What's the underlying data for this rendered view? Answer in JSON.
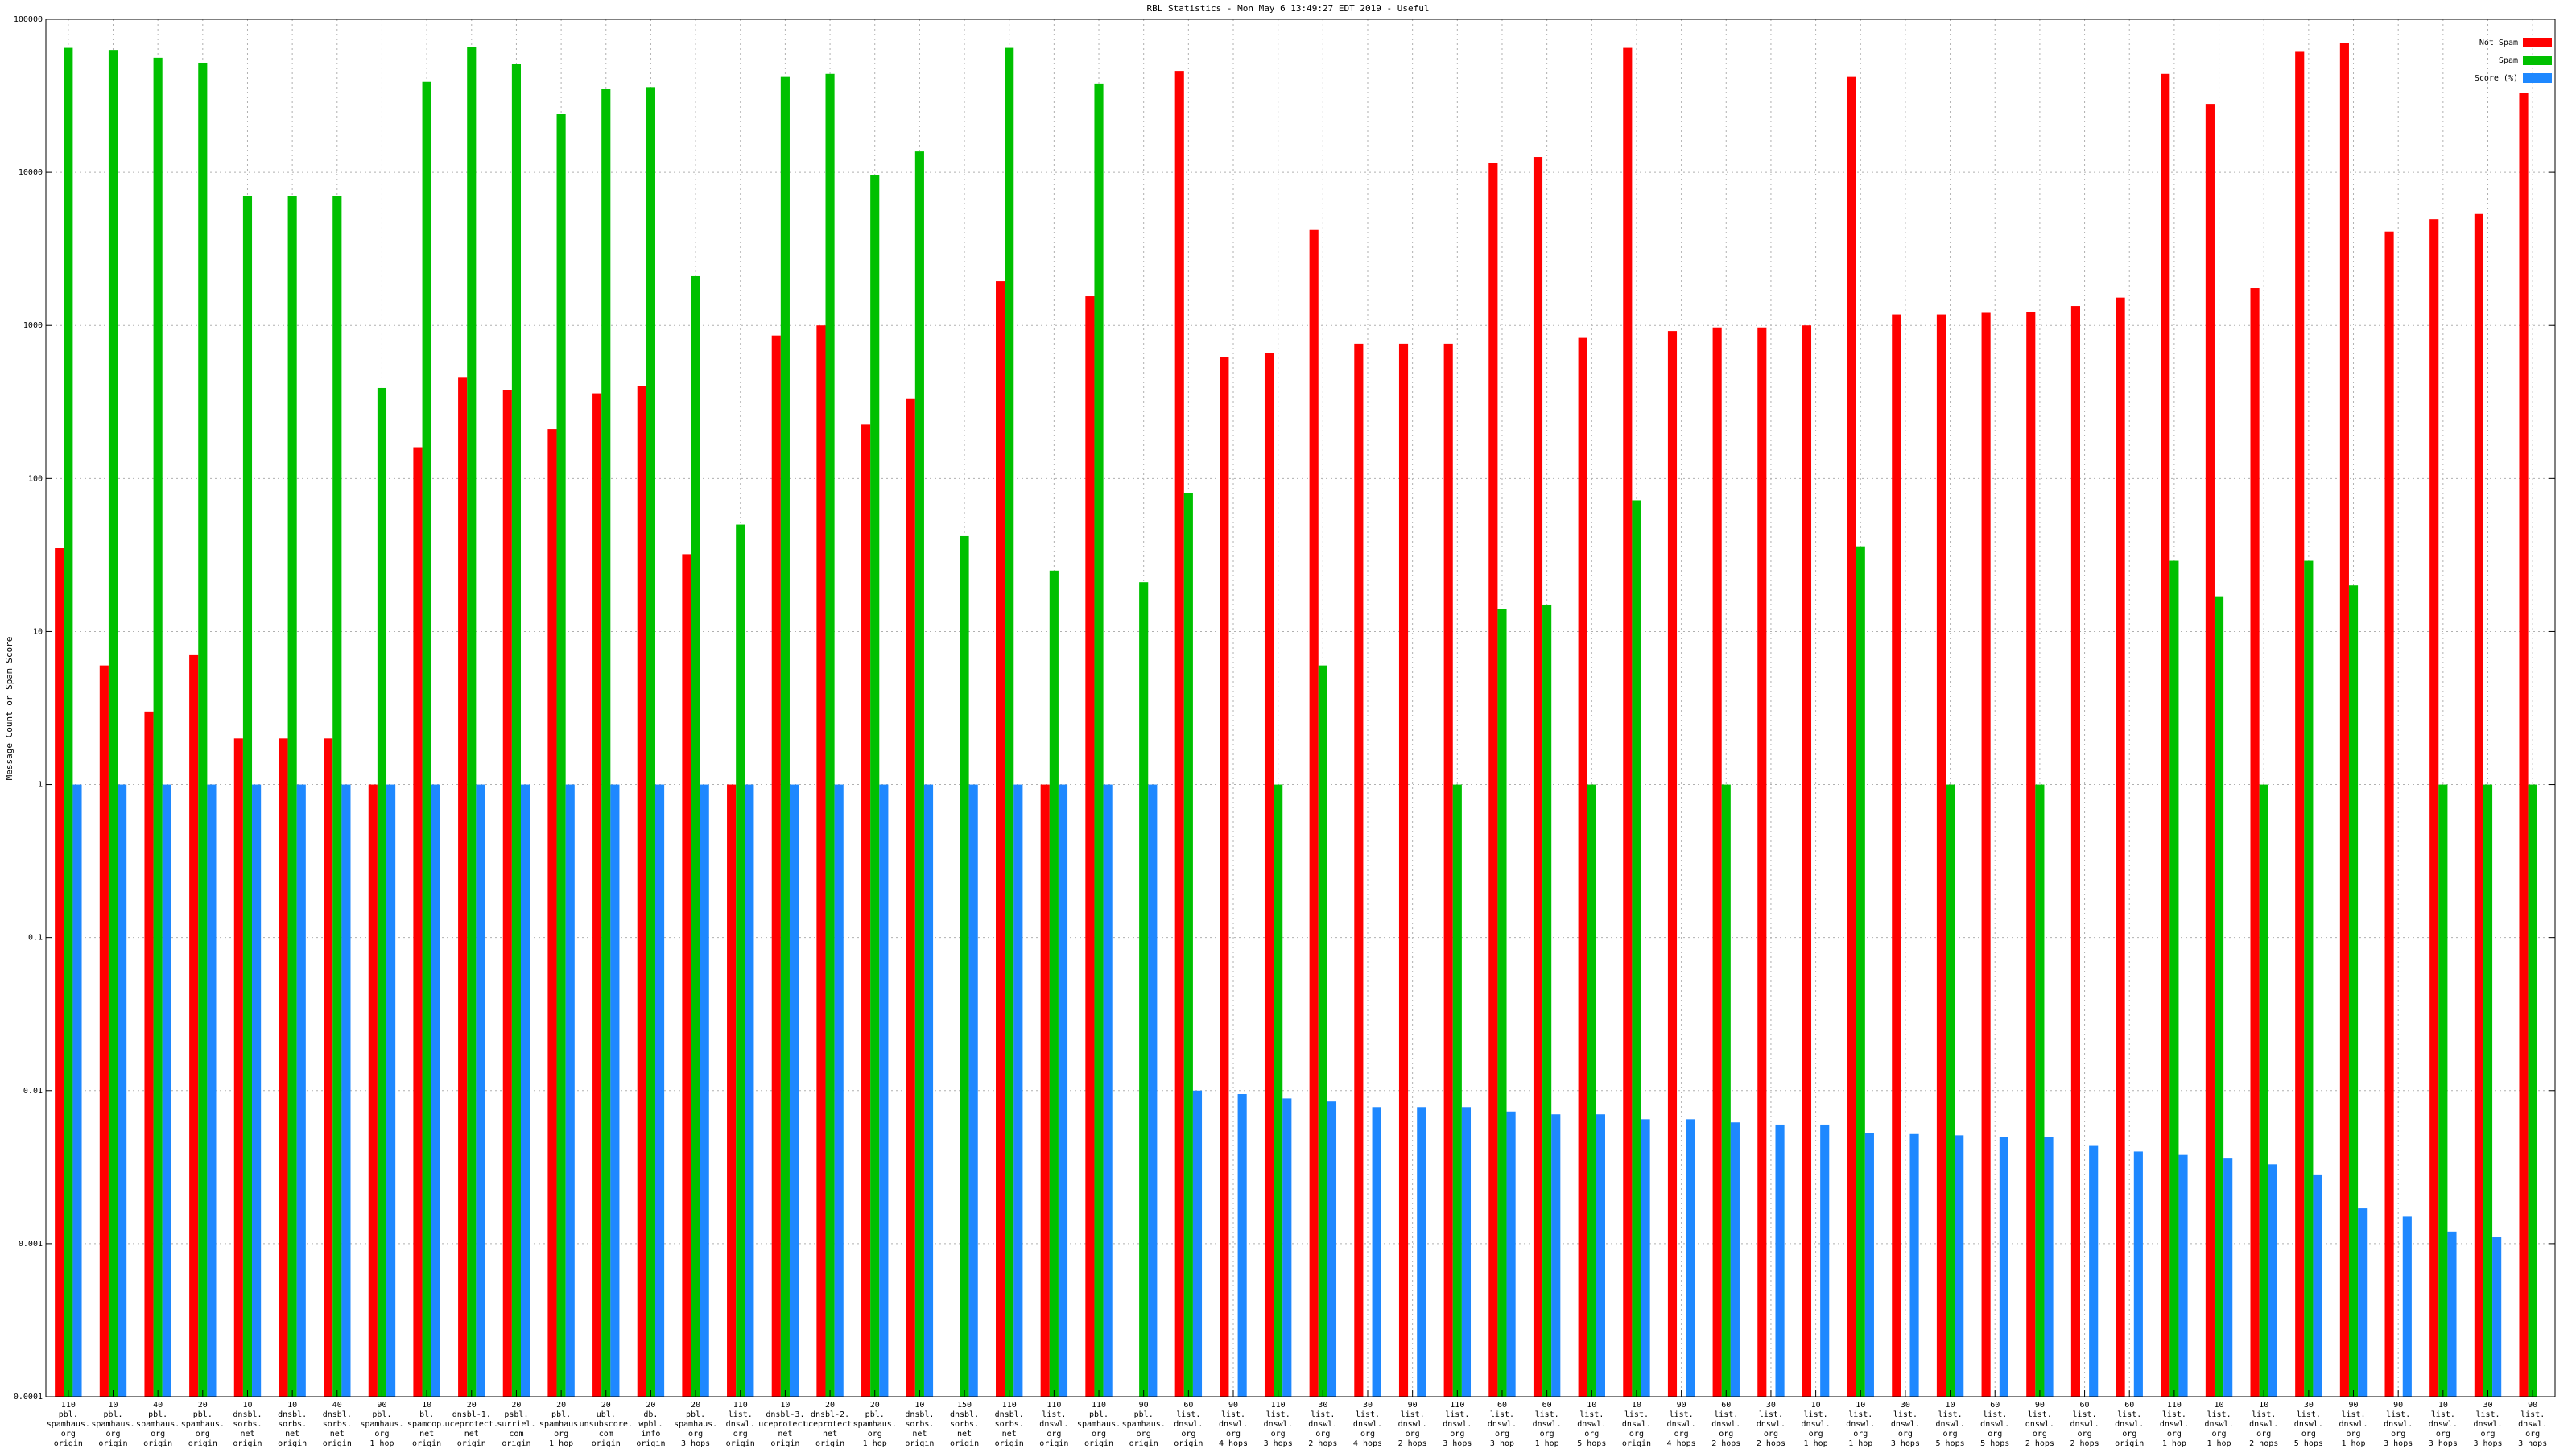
{
  "chart_data": {
    "type": "bar",
    "title": "RBL Statistics - Mon May  6 13:49:27 EDT 2019 - Useful",
    "y_label": "Message Count or Spam Score",
    "yscale": "log",
    "ylim": [
      0.0001,
      100000
    ],
    "yticks": [
      0.0001,
      0.001,
      0.01,
      0.1,
      1,
      10,
      100,
      1000,
      10000,
      100000
    ],
    "grid": true,
    "legend": "upper right",
    "categories": [
      [
        "110",
        "pbl.",
        "spamhaus.",
        "org",
        "origin"
      ],
      [
        "10",
        "pbl.",
        "spamhaus.",
        "org",
        "origin"
      ],
      [
        "40",
        "pbl.",
        "spamhaus.",
        "org",
        "origin"
      ],
      [
        "20",
        "pbl.",
        "spamhaus.",
        "org",
        "origin"
      ],
      [
        "10",
        "dnsbl.",
        "sorbs.",
        "net",
        "origin"
      ],
      [
        "10",
        "dnsbl.",
        "sorbs.",
        "net",
        "origin"
      ],
      [
        "40",
        "dnsbl.",
        "sorbs.",
        "net",
        "origin"
      ],
      [
        "90",
        "pbl.",
        "spamhaus.",
        "org",
        "1 hop"
      ],
      [
        "10",
        "bl.",
        "spamcop.",
        "net",
        "origin"
      ],
      [
        "20",
        "dnsbl-1.",
        "uceprotect.",
        "net",
        "origin"
      ],
      [
        "20",
        "psbl.",
        "surriel.",
        "com",
        "origin"
      ],
      [
        "20",
        "pbl.",
        "spamhaus.",
        "org",
        "1 hop"
      ],
      [
        "20",
        "ubl.",
        "unsubscore.",
        "com",
        "origin"
      ],
      [
        "20",
        "db.",
        "wpbl.",
        "info",
        "origin"
      ],
      [
        "20",
        "pbl.",
        "spamhaus.",
        "org",
        "3 hops"
      ],
      [
        "110",
        "list.",
        "dnswl.",
        "org",
        "origin"
      ],
      [
        "10",
        "dnsbl-3.",
        "uceprotect.",
        "net",
        "origin"
      ],
      [
        "20",
        "dnsbl-2.",
        "uceprotect.",
        "net",
        "origin"
      ],
      [
        "20",
        "pbl.",
        "spamhaus.",
        "org",
        "1 hop"
      ],
      [
        "10",
        "dnsbl.",
        "sorbs.",
        "net",
        "origin"
      ],
      [
        "150",
        "dnsbl.",
        "sorbs.",
        "net",
        "origin"
      ],
      [
        "110",
        "dnsbl.",
        "sorbs.",
        "net",
        "origin"
      ],
      [
        "110",
        "list.",
        "dnswl.",
        "org",
        "origin"
      ],
      [
        "110",
        "pbl.",
        "spamhaus.",
        "org",
        "origin"
      ],
      [
        "90",
        "pbl.",
        "spamhaus.",
        "org",
        "origin"
      ],
      [
        "60",
        "list.",
        "dnswl.",
        "org",
        "origin"
      ],
      [
        "90",
        "list.",
        "dnswl.",
        "org",
        "4 hops"
      ],
      [
        "110",
        "list.",
        "dnswl.",
        "org",
        "3 hops"
      ],
      [
        "30",
        "list.",
        "dnswl.",
        "org",
        "2 hops"
      ],
      [
        "30",
        "list.",
        "dnswl.",
        "org",
        "4 hops"
      ],
      [
        "90",
        "list.",
        "dnswl.",
        "org",
        "2 hops"
      ],
      [
        "110",
        "list.",
        "dnswl.",
        "org",
        "3 hops"
      ],
      [
        "60",
        "list.",
        "dnswl.",
        "org",
        "3 hop"
      ],
      [
        "60",
        "list.",
        "dnswl.",
        "org",
        "1 hop"
      ],
      [
        "10",
        "list.",
        "dnswl.",
        "org",
        "5 hops"
      ],
      [
        "10",
        "list.",
        "dnswl.",
        "org",
        "origin"
      ],
      [
        "90",
        "list.",
        "dnswl.",
        "org",
        "4 hops"
      ],
      [
        "60",
        "list.",
        "dnswl.",
        "org",
        "2 hops"
      ],
      [
        "30",
        "list.",
        "dnswl.",
        "org",
        "2 hops"
      ],
      [
        "10",
        "list.",
        "dnswl.",
        "org",
        "1 hop"
      ],
      [
        "10",
        "list.",
        "dnswl.",
        "org",
        "1 hop"
      ],
      [
        "30",
        "list.",
        "dnswl.",
        "org",
        "3 hops"
      ],
      [
        "10",
        "list.",
        "dnswl.",
        "org",
        "5 hops"
      ],
      [
        "60",
        "list.",
        "dnswl.",
        "org",
        "5 hops"
      ],
      [
        "90",
        "list.",
        "dnswl.",
        "org",
        "2 hops"
      ],
      [
        "60",
        "list.",
        "dnswl.",
        "org",
        "2 hops"
      ],
      [
        "60",
        "list.",
        "dnswl.",
        "org",
        "origin"
      ],
      [
        "110",
        "list.",
        "dnswl.",
        "org",
        "1 hop"
      ],
      [
        "10",
        "list.",
        "dnswl.",
        "org",
        "1 hop"
      ],
      [
        "10",
        "list.",
        "dnswl.",
        "org",
        "2 hops"
      ],
      [
        "30",
        "list.",
        "dnswl.",
        "org",
        "5 hops"
      ],
      [
        "90",
        "list.",
        "dnswl.",
        "org",
        "1 hop"
      ],
      [
        "90",
        "list.",
        "dnswl.",
        "org",
        "3 hops"
      ],
      [
        "10",
        "list.",
        "dnswl.",
        "org",
        "3 hops"
      ],
      [
        "30",
        "list.",
        "dnswl.",
        "org",
        "3 hops"
      ],
      [
        "90",
        "list.",
        "dnswl.",
        "org",
        "3 hops"
      ]
    ],
    "series": [
      {
        "name": "Not Spam",
        "color": "#ff0000",
        "values": [
          35,
          6,
          3,
          7,
          2,
          2,
          2,
          1,
          160,
          460,
          380,
          210,
          360,
          400,
          32,
          1,
          860,
          1000,
          225,
          330,
          null,
          1950,
          1,
          1550,
          null,
          46000,
          620,
          660,
          4200,
          760,
          760,
          760,
          11500,
          12600,
          830,
          65000,
          920,
          970,
          970,
          1000,
          42000,
          1180,
          1180,
          1210,
          1220,
          1340,
          1520,
          44000,
          28000,
          1750,
          62000,
          70000,
          4100,
          4950,
          5350,
          33000
        ]
      },
      {
        "name": "Spam",
        "color": "#00c000",
        "values": [
          65000,
          63000,
          56000,
          52000,
          7000,
          7000,
          7000,
          390,
          39000,
          66000,
          51000,
          24000,
          35000,
          36000,
          2100,
          50,
          42000,
          44000,
          9600,
          13700,
          42,
          65000,
          25,
          38000,
          21,
          80,
          null,
          1,
          6,
          null,
          null,
          1,
          14,
          15,
          1,
          72,
          null,
          1,
          null,
          null,
          36,
          null,
          1,
          null,
          1,
          null,
          null,
          29,
          17,
          1,
          29,
          20,
          null,
          1,
          1,
          1
        ]
      },
      {
        "name": "Score (%)",
        "color": "#1e88ff",
        "values": [
          1,
          1,
          1,
          1,
          1,
          1,
          1,
          1,
          1,
          1,
          1,
          1,
          1,
          1,
          1,
          1,
          1,
          1,
          1,
          1,
          1,
          1,
          1,
          1,
          1,
          0.01,
          0.0095,
          0.0089,
          0.0085,
          0.0078,
          0.0078,
          0.0078,
          0.0073,
          0.007,
          0.007,
          0.0065,
          0.0065,
          0.0062,
          0.006,
          0.006,
          0.0053,
          0.0052,
          0.0051,
          0.005,
          0.005,
          0.0044,
          0.004,
          0.0038,
          0.0036,
          0.0033,
          0.0028,
          0.0017,
          0.0015,
          0.0012,
          0.0011,
          null
        ]
      }
    ]
  }
}
